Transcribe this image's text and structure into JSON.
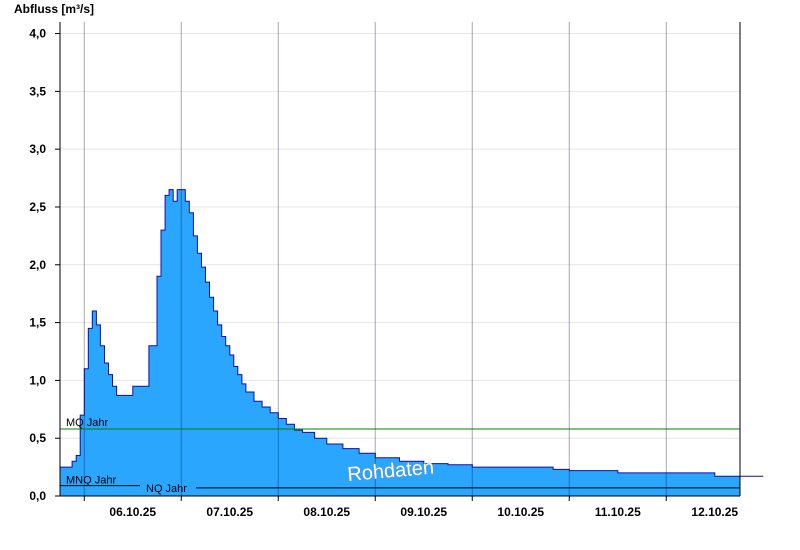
{
  "chart_data": {
    "type": "area",
    "ylabel": "Abfluss [m³/s]",
    "ylim": [
      0,
      4.1
    ],
    "yticks": [
      0,
      0.5,
      1.0,
      1.5,
      2.0,
      2.5,
      3.0,
      3.5,
      4.0
    ],
    "ytick_labels": [
      "0,0",
      "0,5",
      "1,0",
      "1,5",
      "2,0",
      "2,5",
      "3,0",
      "3,5",
      "4,0"
    ],
    "xlim_days": [
      0,
      7
    ],
    "x_tick_labels": [
      "06.10.25",
      "07.10.25",
      "08.10.25",
      "09.10.25",
      "10.10.25",
      "11.10.25",
      "12.10.25"
    ],
    "grid": true,
    "fill_color": "#2aa6ff",
    "line_color": "#1010a0",
    "series": [
      {
        "x": [
          "05.10.25 18:00",
          "05.10.25 20:00",
          "05.10.25 21:00",
          "05.10.25 22:00",
          "05.10.25 23:00",
          "06.10.25 00:00",
          "06.10.25 01:00",
          "06.10.25 02:00",
          "06.10.25 03:00",
          "06.10.25 04:00",
          "06.10.25 05:00",
          "06.10.25 06:00",
          "06.10.25 07:00",
          "06.10.25 08:00",
          "06.10.25 10:00",
          "06.10.25 11:00",
          "06.10.25 12:00",
          "06.10.25 14:00",
          "06.10.25 16:00",
          "06.10.25 18:00",
          "06.10.25 19:00",
          "06.10.25 20:00",
          "06.10.25 21:00",
          "06.10.25 22:00",
          "06.10.25 23:00",
          "07.10.25 00:00",
          "07.10.25 01:00",
          "07.10.25 02:00",
          "07.10.25 03:00",
          "07.10.25 04:00",
          "07.10.25 05:00",
          "07.10.25 06:00",
          "07.10.25 07:00",
          "07.10.25 08:00",
          "07.10.25 09:00",
          "07.10.25 10:00",
          "07.10.25 11:00",
          "07.10.25 12:00",
          "07.10.25 13:00",
          "07.10.25 14:00",
          "07.10.25 15:00",
          "07.10.25 16:00",
          "07.10.25 18:00",
          "07.10.25 20:00",
          "07.10.25 22:00",
          "08.10.25 00:00",
          "08.10.25 02:00",
          "08.10.25 04:00",
          "08.10.25 06:00",
          "08.10.25 09:00",
          "08.10.25 12:00",
          "08.10.25 16:00",
          "08.10.25 20:00",
          "09.10.25 00:00",
          "09.10.25 06:00",
          "09.10.25 12:00",
          "09.10.25 18:00",
          "10.10.25 00:00",
          "10.10.25 12:00",
          "10.10.25 16:00",
          "10.10.25 20:00",
          "11.10.25 00:00",
          "11.10.25 12:00",
          "12.10.25 00:00",
          "12.10.25 08:00",
          "12.10.25 12:00",
          "12.10.25 18:00",
          "13.10.25 00:00"
        ],
        "y": [
          0.25,
          0.25,
          0.3,
          0.35,
          0.7,
          1.1,
          1.45,
          1.6,
          1.48,
          1.3,
          1.15,
          1.05,
          0.95,
          0.87,
          0.87,
          0.87,
          0.95,
          0.95,
          1.3,
          1.9,
          2.3,
          2.6,
          2.65,
          2.55,
          2.65,
          2.65,
          2.55,
          2.45,
          2.25,
          2.1,
          1.98,
          1.85,
          1.72,
          1.6,
          1.48,
          1.38,
          1.3,
          1.22,
          1.12,
          1.05,
          0.97,
          0.9,
          0.82,
          0.77,
          0.72,
          0.67,
          0.62,
          0.57,
          0.55,
          0.5,
          0.45,
          0.41,
          0.37,
          0.33,
          0.3,
          0.28,
          0.27,
          0.25,
          0.25,
          0.25,
          0.23,
          0.22,
          0.2,
          0.2,
          0.2,
          0.17,
          0.17,
          0.17
        ]
      }
    ],
    "reference_lines": [
      {
        "name": "MQ Jahr",
        "value": 0.58,
        "color": "#008000"
      },
      {
        "name": "MNQ Jahr",
        "value": 0.09,
        "color": "#000000"
      },
      {
        "name": "NQ Jahr",
        "value": 0.07,
        "color": "#000000"
      }
    ],
    "watermark": "Rohdaten"
  }
}
